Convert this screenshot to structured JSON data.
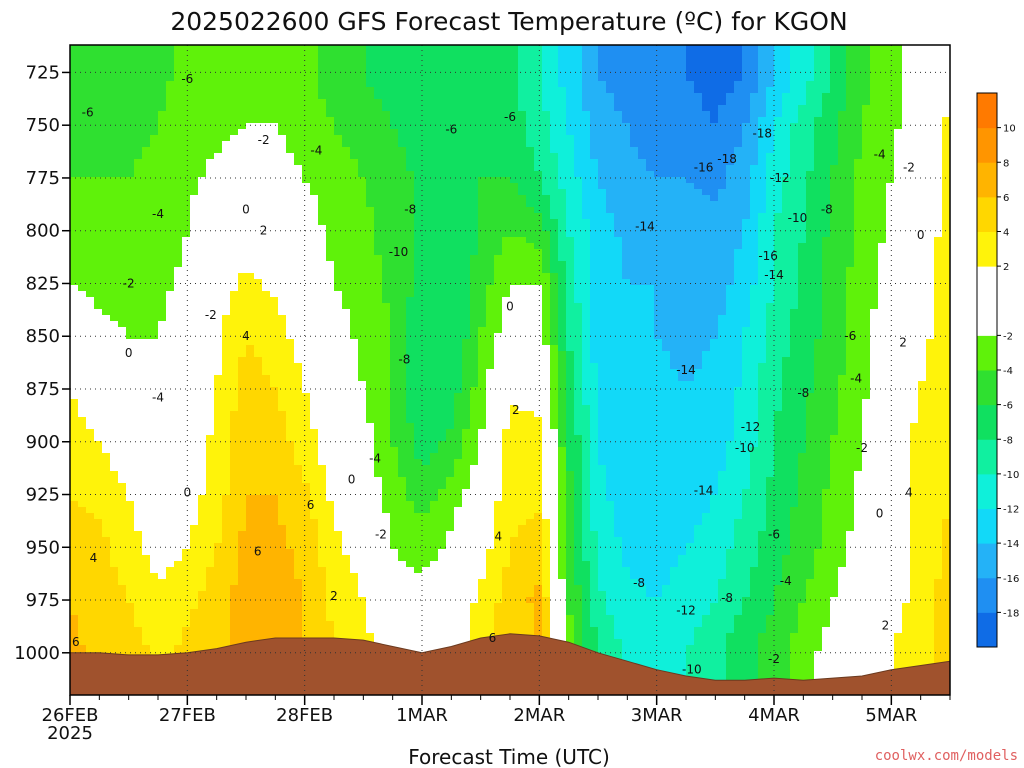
{
  "chart_data": {
    "type": "heatmap",
    "title": "2025022600 GFS Forecast Temperature (ºC) for KGON",
    "xlabel": "Forecast Time (UTC)",
    "ylabel": "",
    "credit": "coolwx.com/models",
    "y_axis": {
      "reversed": true,
      "range": [
        1020,
        712
      ],
      "ticks": [
        725,
        750,
        775,
        800,
        825,
        850,
        875,
        900,
        925,
        950,
        975,
        1000
      ]
    },
    "x_axis": {
      "range_days": [
        0,
        7.5
      ],
      "ticks": [
        {
          "day": 0,
          "label": "26FEB",
          "sublabel": "2025"
        },
        {
          "day": 1,
          "label": "27FEB"
        },
        {
          "day": 2,
          "label": "28FEB"
        },
        {
          "day": 3,
          "label": "1MAR"
        },
        {
          "day": 4,
          "label": "2MAR"
        },
        {
          "day": 5,
          "label": "3MAR"
        },
        {
          "day": 6,
          "label": "4MAR"
        },
        {
          "day": 7,
          "label": "5MAR"
        }
      ]
    },
    "grid": true,
    "colorbar": {
      "placement": "right",
      "levels": [
        -20,
        -18,
        -16,
        -14,
        -12,
        -10,
        -8,
        -6,
        -4,
        -2,
        0,
        2,
        4,
        6,
        8,
        10,
        12
      ],
      "colors": [
        "#0f6ce6",
        "#1f8ff2",
        "#24b2f7",
        "#12d9f8",
        "#0ff0da",
        "#10f0a0",
        "#10e060",
        "#2fe030",
        "#5ff20a",
        "#ffffff",
        "#ffffff",
        "#fff30a",
        "#ffd700",
        "#ffb400",
        "#ff9500",
        "#ff7a00"
      ],
      "tick_values": [
        -18,
        -16,
        -14,
        -12,
        -10,
        -8,
        -6,
        -4,
        -2,
        2,
        4,
        6,
        8,
        10
      ]
    },
    "temperature_field": {
      "columns_day": [
        0,
        0.25,
        0.5,
        0.75,
        1,
        1.25,
        1.5,
        1.75,
        2,
        2.25,
        2.5,
        2.75,
        3,
        3.25,
        3.5,
        3.75,
        4,
        4.25,
        4.5,
        4.75,
        5,
        5.25,
        5.5,
        5.75,
        6,
        6.25,
        6.5,
        6.75,
        7,
        7.25,
        7.5
      ],
      "surface_pressure": [
        1000,
        1000,
        1001,
        1001,
        1000,
        998,
        995,
        993,
        993,
        993,
        994,
        997,
        1000,
        997,
        993,
        991,
        992,
        995,
        1000,
        1004,
        1008,
        1011,
        1013,
        1013,
        1012,
        1013,
        1012,
        1011,
        1008,
        1006,
        1004
      ],
      "levels_hpa": [
        725,
        750,
        775,
        800,
        825,
        850,
        875,
        900,
        925,
        950,
        975,
        1000
      ],
      "rows": [
        [
          -5,
          -6,
          -5,
          -4.5,
          -3.5,
          -3,
          -2.5,
          -2.5,
          -3.5,
          -5,
          -6,
          -7,
          -8,
          -8,
          -7,
          -7.5,
          -10,
          -13,
          -16,
          -17,
          -18,
          -18,
          -19,
          -18,
          -14,
          -11,
          -8,
          -4.5,
          -3,
          -1,
          2
        ],
        [
          -5,
          -5,
          -4.5,
          -4,
          -3,
          -2.5,
          -2,
          -2,
          -3,
          -4,
          -5,
          -6,
          -7,
          -7,
          -6.5,
          -7,
          -9,
          -12,
          -15,
          -16,
          -17,
          -17,
          -18,
          -16,
          -12,
          -9,
          -6.5,
          -4,
          -2.5,
          -0.5,
          2.5
        ],
        [
          -4,
          -4,
          -4,
          -3.5,
          -2.5,
          -1.5,
          -1,
          -1,
          -2,
          -3,
          -4,
          -5,
          -6.5,
          -6.5,
          -6,
          -6,
          -8,
          -11,
          -14,
          -15.5,
          -16,
          -16,
          -16.5,
          -15,
          -11,
          -8.5,
          -6,
          -3.5,
          -2,
          0,
          3
        ],
        [
          -3,
          -3,
          -3,
          -3,
          -2,
          0,
          1,
          0.5,
          -1,
          -2.5,
          -3.5,
          -5,
          -6.5,
          -7,
          -6,
          -4,
          -5,
          -10,
          -13,
          -14.5,
          -15,
          -15,
          -15.5,
          -14,
          -10,
          -8,
          -5.5,
          -3.5,
          -1.5,
          0.5,
          3
        ],
        [
          -2,
          -2.5,
          -2.5,
          -2.5,
          -1.5,
          1,
          2.5,
          1.5,
          0,
          -2,
          -3,
          -4.5,
          -7,
          -8,
          -5,
          -2,
          -2,
          -9,
          -13,
          -14,
          -14,
          -14.5,
          -15,
          -13,
          -10,
          -7.5,
          -5,
          -3,
          -1,
          1,
          3
        ],
        [
          -0.5,
          -1.5,
          -2,
          -2,
          -1,
          1.5,
          4,
          3,
          1,
          -1,
          -2.5,
          -4,
          -7.5,
          -8,
          -4,
          -0.5,
          -0.5,
          -8,
          -13,
          -13.5,
          -14,
          -14.5,
          -14,
          -12,
          -9,
          -7,
          -5,
          -3,
          0,
          1.5,
          3
        ],
        [
          2,
          0.5,
          -1,
          -1.5,
          0,
          2,
          5,
          4,
          2,
          -0.5,
          -2,
          -4,
          -8,
          -7,
          -3,
          1.5,
          1.5,
          -7,
          -12.5,
          -13.5,
          -13.5,
          -14,
          -13.5,
          -11.5,
          -8.5,
          -6.5,
          -4.5,
          -2.5,
          0.5,
          2,
          3
        ],
        [
          3,
          2,
          0.5,
          -0.5,
          0.5,
          2.5,
          5.5,
          5,
          3,
          0.5,
          -1,
          -4,
          -7,
          -5.5,
          -2,
          3,
          2.5,
          -6,
          -12,
          -13.5,
          -14,
          -13.5,
          -13,
          -11,
          -8,
          -6,
          -4,
          -2,
          1,
          2.5,
          3.5
        ],
        [
          4,
          3.5,
          2,
          0,
          1,
          3,
          6,
          6,
          4.5,
          1.5,
          -0.5,
          -3,
          -5,
          -3,
          -0.5,
          3.5,
          3.5,
          -5.5,
          -11.5,
          -13,
          -14,
          -13,
          -12,
          -10,
          -7.5,
          -5.5,
          -3.5,
          -1.5,
          0.5,
          2.5,
          4
        ],
        [
          5,
          4.5,
          3,
          1,
          2,
          4,
          6.5,
          6.5,
          5.5,
          2.5,
          1,
          -2,
          -3,
          -1.5,
          1,
          4,
          5,
          -5,
          -10.5,
          -12.5,
          -13,
          -12,
          -11,
          -9,
          -7,
          -5,
          -3,
          -1,
          0.5,
          2.5,
          4.5
        ],
        [
          6,
          5,
          4,
          2.5,
          3.5,
          5,
          7,
          7,
          6,
          3.5,
          2,
          -1,
          -1,
          0,
          2.5,
          5,
          6.5,
          -4,
          -9.5,
          -11.5,
          -12,
          -11,
          -10,
          -8,
          -6,
          -4,
          -2,
          0,
          1,
          3,
          5
        ],
        [
          6.5,
          5.5,
          5,
          3.5,
          4.5,
          5.5,
          7,
          7,
          6,
          4,
          3,
          0.5,
          0.5,
          1,
          3,
          5,
          6,
          -3,
          -8,
          -10.5,
          -11,
          -10,
          -8.5,
          -6.5,
          -5,
          -3,
          -1,
          1,
          2,
          3.5,
          5
        ]
      ]
    },
    "contour_labels": [
      {
        "text": "-6",
        "day": 1.0,
        "p": 728
      },
      {
        "text": "-6",
        "day": 0.15,
        "p": 744
      },
      {
        "text": "-2",
        "day": 1.65,
        "p": 757
      },
      {
        "text": "-4",
        "day": 2.1,
        "p": 762
      },
      {
        "text": "-6",
        "day": 3.25,
        "p": 752
      },
      {
        "text": "-6",
        "day": 3.75,
        "p": 746
      },
      {
        "text": "-4",
        "day": 0.75,
        "p": 792
      },
      {
        "text": "0",
        "day": 1.5,
        "p": 790
      },
      {
        "text": "2",
        "day": 1.65,
        "p": 800
      },
      {
        "text": "-8",
        "day": 2.9,
        "p": 790
      },
      {
        "text": "-10",
        "day": 2.8,
        "p": 810
      },
      {
        "text": "-2",
        "day": 0.5,
        "p": 825
      },
      {
        "text": "-2",
        "day": 1.2,
        "p": 840
      },
      {
        "text": "4",
        "day": 1.5,
        "p": 850
      },
      {
        "text": "0",
        "day": 0.5,
        "p": 858
      },
      {
        "text": "-4",
        "day": 0.75,
        "p": 879
      },
      {
        "text": "-8",
        "day": 2.85,
        "p": 861
      },
      {
        "text": "0",
        "day": 3.75,
        "p": 836
      },
      {
        "text": "2",
        "day": 3.8,
        "p": 885
      },
      {
        "text": "-4",
        "day": 2.6,
        "p": 908
      },
      {
        "text": "0",
        "day": 2.4,
        "p": 918
      },
      {
        "text": "6",
        "day": 2.05,
        "p": 930
      },
      {
        "text": "0",
        "day": 1.0,
        "p": 924
      },
      {
        "text": "6",
        "day": 1.6,
        "p": 952
      },
      {
        "text": "-2",
        "day": 2.65,
        "p": 944
      },
      {
        "text": "4",
        "day": 3.65,
        "p": 945
      },
      {
        "text": "2",
        "day": 2.25,
        "p": 973
      },
      {
        "text": "4",
        "day": 0.2,
        "p": 955
      },
      {
        "text": "6",
        "day": 0.05,
        "p": 995
      },
      {
        "text": "6",
        "day": 3.6,
        "p": 993
      },
      {
        "text": "-14",
        "day": 4.9,
        "p": 798
      },
      {
        "text": "-16",
        "day": 5.4,
        "p": 770
      },
      {
        "text": "-18",
        "day": 5.6,
        "p": 766
      },
      {
        "text": "-18",
        "day": 5.9,
        "p": 754
      },
      {
        "text": "-12",
        "day": 6.05,
        "p": 775
      },
      {
        "text": "-10",
        "day": 6.2,
        "p": 794
      },
      {
        "text": "-16",
        "day": 5.95,
        "p": 812
      },
      {
        "text": "-14",
        "day": 6.0,
        "p": 821
      },
      {
        "text": "-8",
        "day": 6.45,
        "p": 790
      },
      {
        "text": "-4",
        "day": 6.9,
        "p": 764
      },
      {
        "text": "-2",
        "day": 7.15,
        "p": 770
      },
      {
        "text": "0",
        "day": 7.25,
        "p": 802
      },
      {
        "text": "-14",
        "day": 5.25,
        "p": 866
      },
      {
        "text": "-12",
        "day": 5.8,
        "p": 893
      },
      {
        "text": "-8",
        "day": 6.25,
        "p": 877
      },
      {
        "text": "-6",
        "day": 6.65,
        "p": 850
      },
      {
        "text": "-4",
        "day": 6.7,
        "p": 870
      },
      {
        "text": "2",
        "day": 7.1,
        "p": 853
      },
      {
        "text": "-10",
        "day": 5.75,
        "p": 903
      },
      {
        "text": "-2",
        "day": 6.75,
        "p": 903
      },
      {
        "text": "-14",
        "day": 5.4,
        "p": 923
      },
      {
        "text": "-6",
        "day": 6.0,
        "p": 944
      },
      {
        "text": "-4",
        "day": 6.1,
        "p": 966
      },
      {
        "text": "0",
        "day": 6.9,
        "p": 934
      },
      {
        "text": "4",
        "day": 7.15,
        "p": 924
      },
      {
        "text": "-8",
        "day": 4.85,
        "p": 967
      },
      {
        "text": "-12",
        "day": 5.25,
        "p": 980
      },
      {
        "text": "-8",
        "day": 5.6,
        "p": 974
      },
      {
        "text": "-10",
        "day": 5.3,
        "p": 1008
      },
      {
        "text": "-2",
        "day": 6.0,
        "p": 1003
      },
      {
        "text": "2",
        "day": 6.95,
        "p": 987
      }
    ]
  }
}
